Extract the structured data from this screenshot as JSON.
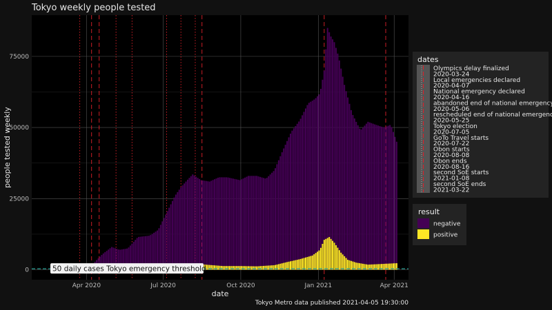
{
  "chart_data": {
    "type": "bar",
    "title": "Tokyo weekly people tested",
    "xlabel": "date",
    "ylabel": "people tested weekly",
    "caption": "Tokyo Metro data published 2021-04-05 19:30:00",
    "x_range": [
      "2020-01-27",
      "2021-04-18"
    ],
    "ylim": [
      -3500,
      89500
    ],
    "x_ticks": [
      {
        "date": "2020-04-01",
        "label": "Apr 2020"
      },
      {
        "date": "2020-07-01",
        "label": "Jul 2020"
      },
      {
        "date": "2020-10-01",
        "label": "Oct 2020"
      },
      {
        "date": "2021-01-01",
        "label": "Jan 2021"
      },
      {
        "date": "2021-04-01",
        "label": "Apr 2021"
      }
    ],
    "y_ticks": [
      0,
      25000,
      50000,
      75000
    ],
    "grid": true,
    "bar_start": "2020-02-15",
    "bar_end": "2021-04-04",
    "bar_interval_days": 2,
    "series": [
      {
        "name": "negative",
        "color": "#440154"
      },
      {
        "name": "positive",
        "color": "#FDE725"
      }
    ],
    "total_tested": {
      "dates": [
        "2020-02-15",
        "2020-03-10",
        "2020-03-18",
        "2020-03-25",
        "2020-04-01",
        "2020-04-05",
        "2020-04-10",
        "2020-04-20",
        "2020-05-01",
        "2020-05-10",
        "2020-05-20",
        "2020-06-01",
        "2020-06-15",
        "2020-06-25",
        "2020-07-05",
        "2020-07-15",
        "2020-07-22",
        "2020-07-31",
        "2020-08-05",
        "2020-08-15",
        "2020-08-25",
        "2020-09-05",
        "2020-09-15",
        "2020-09-30",
        "2020-10-10",
        "2020-10-20",
        "2020-10-31",
        "2020-11-10",
        "2020-11-20",
        "2020-11-30",
        "2020-12-10",
        "2020-12-20",
        "2020-12-28",
        "2021-01-03",
        "2021-01-08",
        "2021-01-12",
        "2021-01-16",
        "2021-01-20",
        "2021-01-25",
        "2021-02-01",
        "2021-02-10",
        "2021-02-20",
        "2021-03-01",
        "2021-03-10",
        "2021-03-20",
        "2021-03-28",
        "2021-04-04"
      ],
      "values": [
        0,
        0,
        0,
        0,
        500,
        1000,
        2500,
        5500,
        8000,
        7000,
        7500,
        11500,
        12000,
        14000,
        20000,
        26000,
        29000,
        32000,
        33500,
        31500,
        31000,
        32500,
        32500,
        31500,
        33000,
        33000,
        32000,
        35000,
        42000,
        48500,
        52500,
        58500,
        60000,
        62000,
        70000,
        85000,
        82000,
        80000,
        75000,
        65000,
        55000,
        49000,
        52000,
        51000,
        50000,
        51000,
        45000
      ]
    },
    "positive": {
      "dates": [
        "2020-02-15",
        "2020-03-10",
        "2020-03-25",
        "2020-04-05",
        "2020-04-15",
        "2020-05-01",
        "2020-05-20",
        "2020-06-15",
        "2020-07-05",
        "2020-07-20",
        "2020-08-05",
        "2020-08-20",
        "2020-09-10",
        "2020-10-01",
        "2020-10-20",
        "2020-11-10",
        "2020-11-25",
        "2020-12-10",
        "2020-12-25",
        "2021-01-03",
        "2021-01-08",
        "2021-01-14",
        "2021-01-20",
        "2021-01-28",
        "2021-02-05",
        "2021-02-15",
        "2021-03-01",
        "2021-03-15",
        "2021-04-04"
      ],
      "values": [
        0,
        0,
        200,
        800,
        1200,
        1000,
        300,
        400,
        900,
        1500,
        2000,
        1800,
        1300,
        1300,
        1200,
        1600,
        2700,
        3700,
        5000,
        7000,
        10500,
        11500,
        9500,
        6000,
        3500,
        2500,
        1800,
        2000,
        2300
      ]
    },
    "threshold": {
      "value": 350,
      "label": "50 daily cases Tokyo emergency threshold",
      "color": "#2aa198"
    },
    "event_lines": [
      {
        "date": "2020-03-24",
        "style": "dotted"
      },
      {
        "date": "2020-04-07",
        "style": "dashed"
      },
      {
        "date": "2020-04-16",
        "style": "dashed"
      },
      {
        "date": "2020-05-06",
        "style": "dotted"
      },
      {
        "date": "2020-05-25",
        "style": "dotted"
      },
      {
        "date": "2020-07-05",
        "style": "dotted"
      },
      {
        "date": "2020-07-22",
        "style": "dotted"
      },
      {
        "date": "2020-08-08",
        "style": "dotted"
      },
      {
        "date": "2020-08-16",
        "style": "dashed"
      },
      {
        "date": "2021-01-08",
        "style": "dashed"
      },
      {
        "date": "2021-03-22",
        "style": "dashed"
      }
    ],
    "legend": {
      "placement": "right",
      "dates_title": "dates",
      "dates_entries": [
        "Olympics delay finalized",
        "2020-03-24",
        "Local emergencies declared",
        "2020-04-07",
        "National emergency declared",
        "2020-04-16",
        "abandoned end of national emergency",
        "2020-05-06",
        "rescheduled end of national emergency",
        "2020-05-25",
        "Tokyo election",
        "2020-07-05",
        "GoTo Travel starts",
        "2020-07-22",
        "Obon starts",
        "2020-08-08",
        "Obon ends",
        "2020-08-16",
        "second SoE starts",
        "2021-01-08",
        "second SoE ends",
        "2021-03-22"
      ],
      "result_title": "result"
    }
  }
}
